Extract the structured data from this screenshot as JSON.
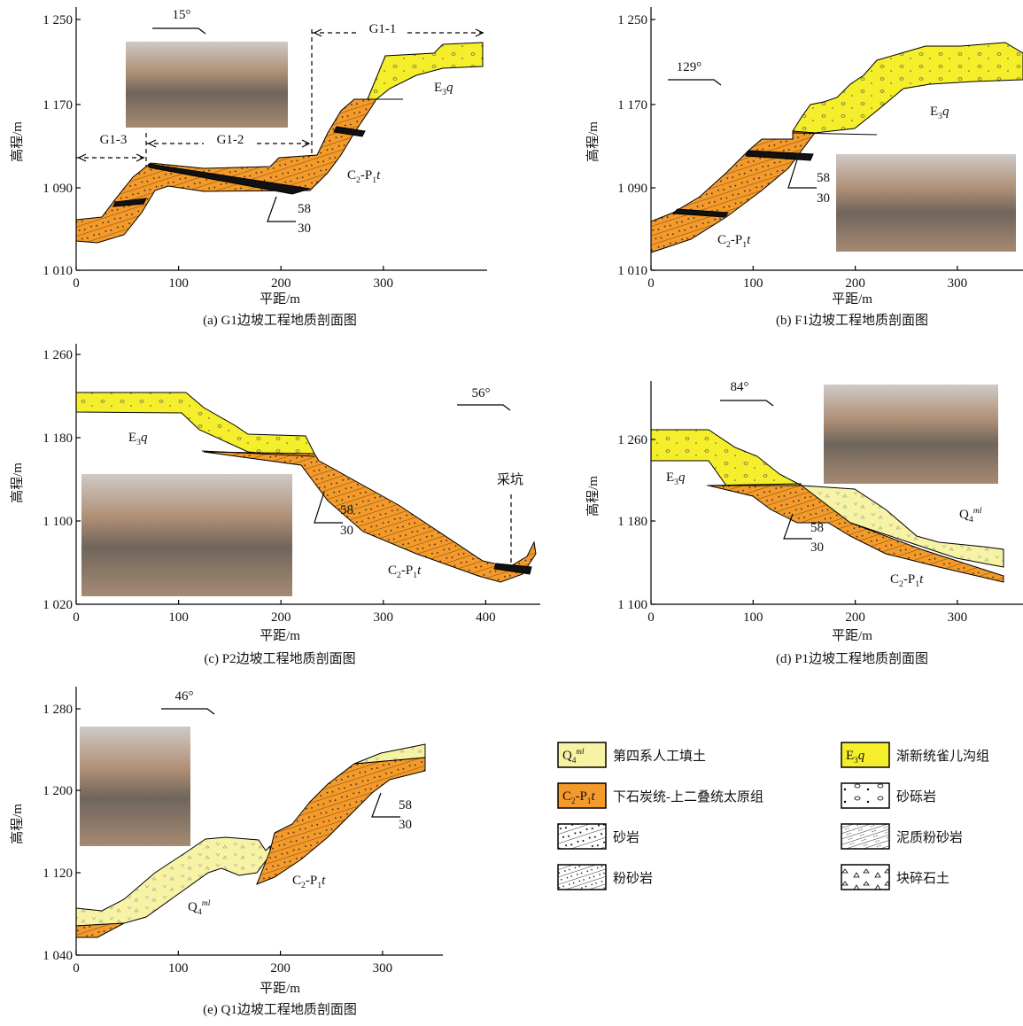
{
  "panels": [
    {
      "caption": "(a) G1边坡工程地质剖面图",
      "y_label": "高程/m",
      "x_label": "平距/m",
      "yticks": [
        "1 250",
        "1 170",
        "1 090",
        "1 010"
      ],
      "xticks": [
        "0",
        "100",
        "200",
        "300"
      ],
      "direction": "15°",
      "labels": [
        "G1-1",
        "G1-2",
        "G1-3"
      ],
      "formations": [
        {
          "parts": [
            "E",
            "3",
            "q"
          ],
          "styles": [
            "n",
            "sub",
            "i"
          ]
        },
        {
          "parts": [
            "C",
            "2",
            "-P",
            "1",
            "t"
          ],
          "styles": [
            "n",
            "sub",
            "n",
            "sub",
            "i"
          ]
        }
      ],
      "dip": [
        "58",
        "30"
      ]
    },
    {
      "caption": "(b) F1边坡工程地质剖面图",
      "y_label": "高程/m",
      "x_label": "平距/m",
      "yticks": [
        "1 250",
        "1 170",
        "1 090",
        "1 010"
      ],
      "xticks": [
        "0",
        "100",
        "200",
        "300"
      ],
      "direction": "129°",
      "labels": [],
      "formations": [
        {
          "parts": [
            "E",
            "3",
            "q"
          ],
          "styles": [
            "n",
            "sub",
            "i"
          ]
        },
        {
          "parts": [
            "C",
            "2",
            "-P",
            "1",
            "t"
          ],
          "styles": [
            "n",
            "sub",
            "n",
            "sub",
            "i"
          ]
        }
      ],
      "dip": [
        "58",
        "30"
      ]
    },
    {
      "caption": "(c) P2边坡工程地质剖面图",
      "y_label": "高程/m",
      "x_label": "平距/m",
      "yticks": [
        "1 260",
        "1 180",
        "1 100",
        "1 020"
      ],
      "xticks": [
        "0",
        "100",
        "200",
        "300",
        "400"
      ],
      "direction": "56°",
      "labels": [
        "采坑"
      ],
      "formations": [
        {
          "parts": [
            "E",
            "3",
            "q"
          ],
          "styles": [
            "n",
            "sub",
            "i"
          ]
        },
        {
          "parts": [
            "C",
            "2",
            "-P",
            "1",
            "t"
          ],
          "styles": [
            "n",
            "sub",
            "n",
            "sub",
            "i"
          ]
        }
      ],
      "dip": [
        "58",
        "30"
      ]
    },
    {
      "caption": "(d) P1边坡工程地质剖面图",
      "y_label": "高程/m",
      "x_label": "平距/m",
      "yticks": [
        "1 260",
        "1 180",
        "1 100"
      ],
      "xticks": [
        "0",
        "100",
        "200",
        "300"
      ],
      "direction": "84°",
      "labels": [],
      "formations": [
        {
          "parts": [
            "E",
            "3",
            "q"
          ],
          "styles": [
            "n",
            "sub",
            "i"
          ]
        },
        {
          "parts": [
            "Q",
            "4",
            "ml"
          ],
          "styles": [
            "n",
            "sub",
            "sup"
          ]
        },
        {
          "parts": [
            "C",
            "2",
            "-P",
            "1",
            "t"
          ],
          "styles": [
            "n",
            "sub",
            "n",
            "sub",
            "i"
          ]
        }
      ],
      "dip": [
        "58",
        "30"
      ]
    },
    {
      "caption": "(e) Q1边坡工程地质剖面图",
      "y_label": "高程/m",
      "x_label": "平距/m",
      "yticks": [
        "1 280",
        "1 200",
        "1 120",
        "1 040"
      ],
      "xticks": [
        "0",
        "100",
        "200",
        "300"
      ],
      "direction": "46°",
      "labels": [],
      "formations": [
        {
          "parts": [
            "Q",
            "4",
            "ml"
          ],
          "styles": [
            "n",
            "sub",
            "sup"
          ]
        },
        {
          "parts": [
            "C",
            "2",
            "-P",
            "1",
            "t"
          ],
          "styles": [
            "n",
            "sub",
            "n",
            "sub",
            "i"
          ]
        }
      ],
      "dip": [
        "58",
        "30"
      ]
    }
  ],
  "legend": [
    {
      "symbol": {
        "parts": [
          "Q",
          "4",
          "ml"
        ],
        "styles": [
          "n",
          "sub",
          "sup"
        ]
      },
      "text": "第四系人工填土"
    },
    {
      "symbol": {
        "parts": [
          "E",
          "3",
          "q"
        ],
        "styles": [
          "n",
          "sub",
          "i"
        ]
      },
      "text": "渐新统雀儿沟组"
    },
    {
      "symbol": {
        "parts": [
          "C",
          "2",
          "-P",
          "1",
          "t"
        ],
        "styles": [
          "n",
          "sub",
          "n",
          "sub",
          "i"
        ]
      },
      "text": "下石炭统-上二叠统太原组"
    },
    {
      "text": "砂砾岩"
    },
    {
      "text": "砂岩"
    },
    {
      "text": "泥质粉砂岩"
    },
    {
      "text": "粉砂岩"
    },
    {
      "text": "块碎石土"
    }
  ]
}
